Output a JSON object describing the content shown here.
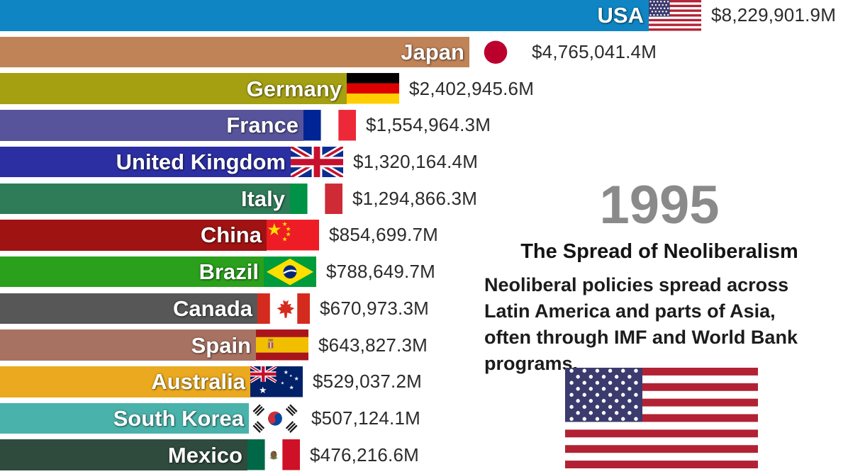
{
  "panel": {
    "year": "1995",
    "title": "The Spread of Neoliberalism",
    "description_lines": [
      "Neoliberal policies spread across",
      "Latin America and parts of Asia,",
      "often through IMF and World Bank",
      "programs."
    ],
    "year_color": "#8a8a8a",
    "flag_image": "usa-flag-image"
  },
  "chart_data": {
    "type": "bar",
    "orientation": "horizontal",
    "title": "The Spread of Neoliberalism",
    "year": 1995,
    "unit": "USD millions",
    "order": "descending",
    "grid": false,
    "legend": false,
    "categories": [
      "USA",
      "Japan",
      "Germany",
      "France",
      "United Kingdom",
      "Italy",
      "China",
      "Brazil",
      "Canada",
      "Spain",
      "Australia",
      "South Korea",
      "Mexico"
    ],
    "series": [
      {
        "key": "usa",
        "country": "USA",
        "value": 8229901.9,
        "display_value": "$8,229,901.9M",
        "color": "#0f86c3",
        "flag": "usa-flag-icon"
      },
      {
        "key": "japan",
        "country": "Japan",
        "value": 4765041.4,
        "display_value": "$4,765,041.4M",
        "color": "#c08257",
        "flag": "japan-flag-icon"
      },
      {
        "key": "germany",
        "country": "Germany",
        "value": 2402945.6,
        "display_value": "$2,402,945.6M",
        "color": "#a5a011",
        "flag": "germany-flag-icon"
      },
      {
        "key": "france",
        "country": "France",
        "value": 1554964.3,
        "display_value": "$1,554,964.3M",
        "color": "#57549b",
        "flag": "france-flag-icon"
      },
      {
        "key": "uk",
        "country": "United Kingdom",
        "value": 1320164.4,
        "display_value": "$1,320,164.4M",
        "color": "#2c2fa2",
        "flag": "uk-flag-icon"
      },
      {
        "key": "italy",
        "country": "Italy",
        "value": 1294866.3,
        "display_value": "$1,294,866.3M",
        "color": "#2f7c59",
        "flag": "italy-flag-icon"
      },
      {
        "key": "china",
        "country": "China",
        "value": 854699.7,
        "display_value": "$854,699.7M",
        "color": "#a01313",
        "flag": "china-flag-icon"
      },
      {
        "key": "brazil",
        "country": "Brazil",
        "value": 788649.7,
        "display_value": "$788,649.7M",
        "color": "#2aa01c",
        "flag": "brazil-flag-icon"
      },
      {
        "key": "canada",
        "country": "Canada",
        "value": 670973.3,
        "display_value": "$670,973.3M",
        "color": "#575757",
        "flag": "canada-flag-icon"
      },
      {
        "key": "spain",
        "country": "Spain",
        "value": 643827.3,
        "display_value": "$643,827.3M",
        "color": "#a87263",
        "flag": "spain-flag-icon"
      },
      {
        "key": "australia",
        "country": "Australia",
        "value": 529037.2,
        "display_value": "$529,037.2M",
        "color": "#eaa91e",
        "flag": "australia-flag-icon"
      },
      {
        "key": "south_korea",
        "country": "South Korea",
        "value": 507124.1,
        "display_value": "$507,124.1M",
        "color": "#49b3ab",
        "flag": "south-korea-flag-icon"
      },
      {
        "key": "mexico",
        "country": "Mexico",
        "value": 476216.6,
        "display_value": "$476,216.6M",
        "color": "#2f4b3d",
        "flag": "mexico-flag-icon"
      }
    ]
  }
}
